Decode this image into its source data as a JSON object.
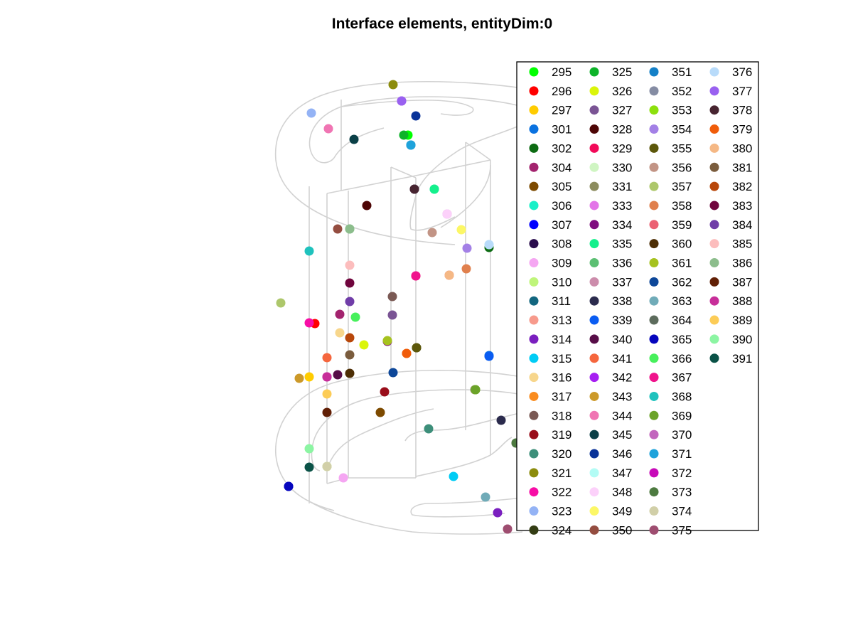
{
  "chart_data": {
    "type": "scatter",
    "title": "Interface elements, entityDim:0",
    "xlabel": "",
    "ylabel": "",
    "grid": false,
    "legend_placement": "top-right",
    "series": [
      {
        "name": "295",
        "color": "#00ff00",
        "marker": "circle"
      },
      {
        "name": "296",
        "color": "#ff0000",
        "marker": "circle"
      },
      {
        "name": "297",
        "color": "#ffcc00",
        "marker": "circle"
      },
      {
        "name": "301",
        "color": "#0a72e0",
        "marker": "circle"
      },
      {
        "name": "302",
        "color": "#0d6b13",
        "marker": "circle"
      },
      {
        "name": "304",
        "color": "#a3236e",
        "marker": "circle"
      },
      {
        "name": "305",
        "color": "#7d4a00",
        "marker": "circle"
      },
      {
        "name": "306",
        "color": "#19f0c8",
        "marker": "circle"
      },
      {
        "name": "307",
        "color": "#0000ff",
        "marker": "circle"
      },
      {
        "name": "308",
        "color": "#2a0d4d",
        "marker": "circle"
      },
      {
        "name": "309",
        "color": "#f5a6f2",
        "marker": "circle"
      },
      {
        "name": "310",
        "color": "#bff57a",
        "marker": "circle"
      },
      {
        "name": "311",
        "color": "#12667f",
        "marker": "circle"
      },
      {
        "name": "313",
        "color": "#f79a8c",
        "marker": "circle"
      },
      {
        "name": "314",
        "color": "#7a1fbf",
        "marker": "circle"
      },
      {
        "name": "315",
        "color": "#00ccf5",
        "marker": "circle"
      },
      {
        "name": "316",
        "color": "#f7d68c",
        "marker": "circle"
      },
      {
        "name": "317",
        "color": "#fa8c1f",
        "marker": "circle"
      },
      {
        "name": "318",
        "color": "#7a5954",
        "marker": "circle"
      },
      {
        "name": "319",
        "color": "#990d1a",
        "marker": "circle"
      },
      {
        "name": "320",
        "color": "#3d8f7a",
        "marker": "circle"
      },
      {
        "name": "321",
        "color": "#8c8c0d",
        "marker": "circle"
      },
      {
        "name": "322",
        "color": "#f70da6",
        "marker": "circle"
      },
      {
        "name": "323",
        "color": "#94b3f5",
        "marker": "circle"
      },
      {
        "name": "324",
        "color": "#333d14",
        "marker": "circle"
      },
      {
        "name": "325",
        "color": "#0db329",
        "marker": "circle"
      },
      {
        "name": "326",
        "color": "#dbf50a",
        "marker": "circle"
      },
      {
        "name": "327",
        "color": "#7a5494",
        "marker": "circle"
      },
      {
        "name": "328",
        "color": "#4d0505",
        "marker": "circle"
      },
      {
        "name": "329",
        "color": "#f20a59",
        "marker": "circle"
      },
      {
        "name": "330",
        "color": "#cff5c2",
        "marker": "circle"
      },
      {
        "name": "331",
        "color": "#8c8c5e",
        "marker": "circle"
      },
      {
        "name": "333",
        "color": "#e375e8",
        "marker": "circle"
      },
      {
        "name": "334",
        "color": "#800d80",
        "marker": "circle"
      },
      {
        "name": "335",
        "color": "#14f08c",
        "marker": "circle"
      },
      {
        "name": "336",
        "color": "#5cbf73",
        "marker": "circle"
      },
      {
        "name": "337",
        "color": "#cc8cab",
        "marker": "circle"
      },
      {
        "name": "338",
        "color": "#2b2b4d",
        "marker": "circle"
      },
      {
        "name": "339",
        "color": "#0a5cf2",
        "marker": "circle"
      },
      {
        "name": "340",
        "color": "#570d47",
        "marker": "circle"
      },
      {
        "name": "341",
        "color": "#f5663d",
        "marker": "circle"
      },
      {
        "name": "342",
        "color": "#a61ff2",
        "marker": "circle"
      },
      {
        "name": "343",
        "color": "#cc9929",
        "marker": "circle"
      },
      {
        "name": "344",
        "color": "#f075b3",
        "marker": "circle"
      },
      {
        "name": "345",
        "color": "#0a4047",
        "marker": "circle"
      },
      {
        "name": "346",
        "color": "#0a3399",
        "marker": "circle"
      },
      {
        "name": "347",
        "color": "#b3fcf5",
        "marker": "circle"
      },
      {
        "name": "348",
        "color": "#fcd1fa",
        "marker": "circle"
      },
      {
        "name": "349",
        "color": "#fcf766",
        "marker": "circle"
      },
      {
        "name": "350",
        "color": "#944d40",
        "marker": "circle"
      },
      {
        "name": "351",
        "color": "#1480c7",
        "marker": "circle"
      },
      {
        "name": "352",
        "color": "#858ca3",
        "marker": "circle"
      },
      {
        "name": "353",
        "color": "#8ce00d",
        "marker": "circle"
      },
      {
        "name": "354",
        "color": "#a380e6",
        "marker": "circle"
      },
      {
        "name": "355",
        "color": "#5c570a",
        "marker": "circle"
      },
      {
        "name": "356",
        "color": "#c29485",
        "marker": "circle"
      },
      {
        "name": "357",
        "color": "#adc76b",
        "marker": "circle"
      },
      {
        "name": "358",
        "color": "#e0804d",
        "marker": "circle"
      },
      {
        "name": "359",
        "color": "#eb6173",
        "marker": "circle"
      },
      {
        "name": "360",
        "color": "#4d2e05",
        "marker": "circle"
      },
      {
        "name": "361",
        "color": "#a6c21f",
        "marker": "circle"
      },
      {
        "name": "362",
        "color": "#0d4799",
        "marker": "circle"
      },
      {
        "name": "363",
        "color": "#70abb8",
        "marker": "circle"
      },
      {
        "name": "364",
        "color": "#5c6b5c",
        "marker": "circle"
      },
      {
        "name": "365",
        "color": "#0505bd",
        "marker": "circle"
      },
      {
        "name": "366",
        "color": "#47f05c",
        "marker": "circle"
      },
      {
        "name": "367",
        "color": "#f0148c",
        "marker": "circle"
      },
      {
        "name": "368",
        "color": "#1fc2bd",
        "marker": "circle"
      },
      {
        "name": "369",
        "color": "#6ba329",
        "marker": "circle"
      },
      {
        "name": "370",
        "color": "#c266bd",
        "marker": "circle"
      },
      {
        "name": "371",
        "color": "#1fa3db",
        "marker": "circle"
      },
      {
        "name": "372",
        "color": "#c70ab8",
        "marker": "circle"
      },
      {
        "name": "373",
        "color": "#4d7a40",
        "marker": "circle"
      },
      {
        "name": "374",
        "color": "#d1cfa8",
        "marker": "circle"
      },
      {
        "name": "375",
        "color": "#9e4d70",
        "marker": "circle"
      },
      {
        "name": "376",
        "color": "#b8dbfa",
        "marker": "circle"
      },
      {
        "name": "377",
        "color": "#9961f0",
        "marker": "circle"
      },
      {
        "name": "378",
        "color": "#472430",
        "marker": "circle"
      },
      {
        "name": "379",
        "color": "#f05c0a",
        "marker": "circle"
      },
      {
        "name": "380",
        "color": "#f5b885",
        "marker": "circle"
      },
      {
        "name": "381",
        "color": "#7a5c3d",
        "marker": "circle"
      },
      {
        "name": "382",
        "color": "#b8470a",
        "marker": "circle"
      },
      {
        "name": "383",
        "color": "#70053d",
        "marker": "circle"
      },
      {
        "name": "384",
        "color": "#703da8",
        "marker": "circle"
      },
      {
        "name": "385",
        "color": "#fcbdbd",
        "marker": "circle"
      },
      {
        "name": "386",
        "color": "#8cbd8c",
        "marker": "circle"
      },
      {
        "name": "387",
        "color": "#611f05",
        "marker": "circle"
      },
      {
        "name": "388",
        "color": "#c72e99",
        "marker": "circle"
      },
      {
        "name": "389",
        "color": "#fccc57",
        "marker": "circle"
      },
      {
        "name": "390",
        "color": "#8cf5a3",
        "marker": "circle"
      },
      {
        "name": "391",
        "color": "#0a5247",
        "marker": "circle"
      }
    ]
  }
}
